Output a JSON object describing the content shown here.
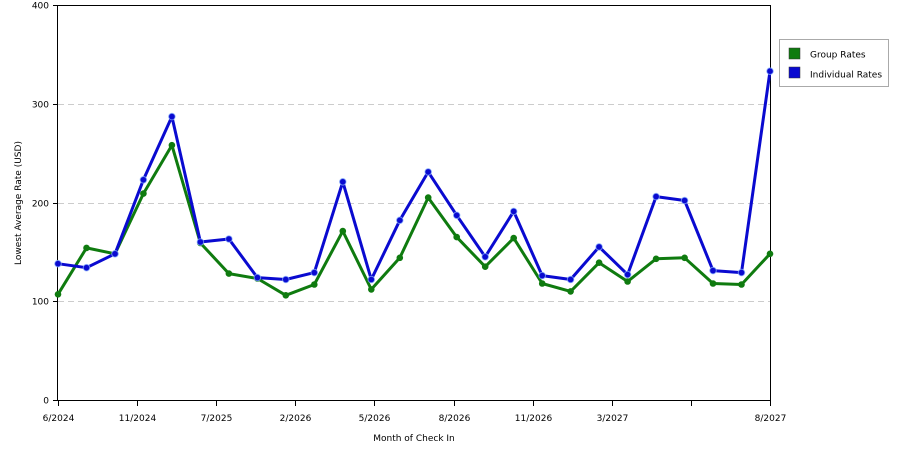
{
  "chart_data": {
    "type": "line",
    "xlabel": "Month of Check In",
    "ylabel": "Lowest Average Rate (USD)",
    "ylim": [
      0,
      400
    ],
    "y_ticks": [
      "0",
      "100",
      "200",
      "300",
      "400"
    ],
    "x_tick_labels": [
      "6/2024",
      "11/2024",
      "7/2025",
      "2/2026",
      "5/2026",
      "8/2026",
      "11/2026",
      "3/2027",
      "",
      "8/2027"
    ],
    "grid": "horizontal dashed",
    "legend_position": "top-right",
    "series": [
      {
        "name": "Group Rates",
        "color": "#0f7b0f",
        "values": [
          107,
          154,
          148,
          209,
          258,
          159,
          128,
          123,
          106,
          117,
          171,
          112,
          144,
          205,
          165,
          135,
          164,
          118,
          110,
          139,
          120,
          143,
          144,
          118,
          117,
          148
        ]
      },
      {
        "name": "Individual Rates",
        "color": "#0a0ad0",
        "values": [
          138,
          134,
          148,
          223,
          287,
          160,
          163,
          124,
          122,
          129,
          221,
          122,
          182,
          231,
          187,
          145,
          191,
          126,
          122,
          155,
          127,
          206,
          202,
          131,
          129,
          333
        ]
      }
    ]
  }
}
